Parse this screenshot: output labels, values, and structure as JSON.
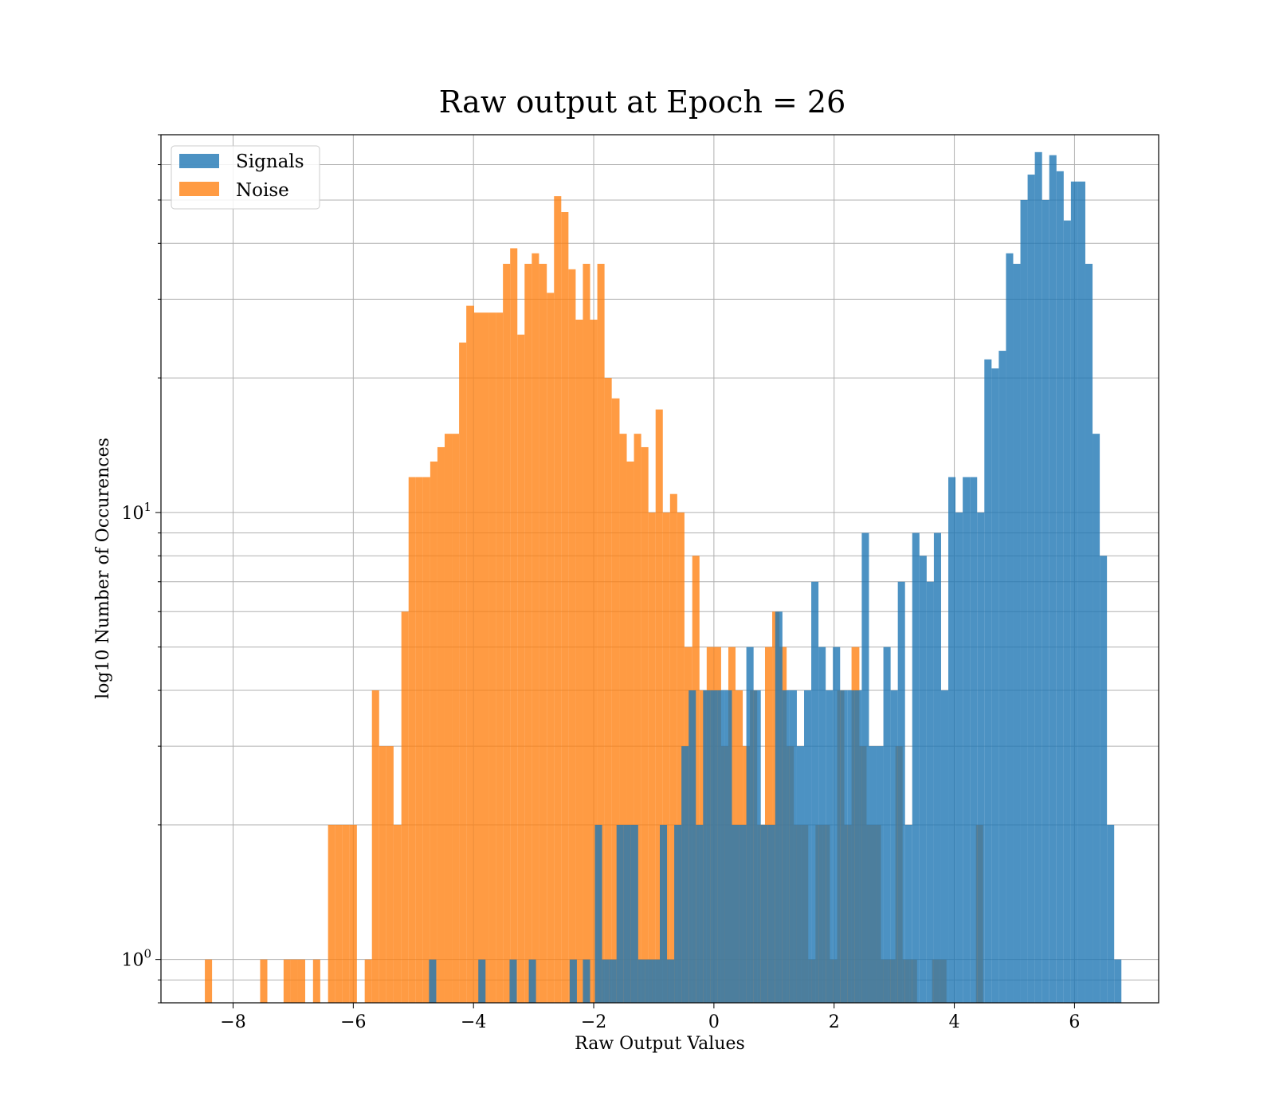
{
  "chart_data": {
    "type": "bar",
    "title": "Raw output at Epoch = 26",
    "xlabel": "Raw Output Values",
    "ylabel": "log10 Number of Occurences",
    "xlim": [
      -9.2,
      7.4
    ],
    "ylim": [
      0.8,
      70
    ],
    "yscale": "log",
    "grid": true,
    "legend_position": "top-left",
    "x_ticks": [
      {
        "value": -8,
        "label": "−8"
      },
      {
        "value": -6,
        "label": "−6"
      },
      {
        "value": -4,
        "label": "−4"
      },
      {
        "value": -2,
        "label": "−2"
      },
      {
        "value": 0,
        "label": "0"
      },
      {
        "value": 2,
        "label": "2"
      },
      {
        "value": 4,
        "label": "4"
      },
      {
        "value": 6,
        "label": "6"
      }
    ],
    "y_ticks": [
      {
        "value": 1,
        "base": "10",
        "exp": "0"
      },
      {
        "value": 10,
        "base": "10",
        "exp": "1"
      }
    ],
    "series": [
      {
        "name": "Noise",
        "color": "#ff7f0e",
        "opacity": 0.78,
        "bins": [
          [
            -8.47,
            -8.35,
            1
          ],
          [
            -7.55,
            -7.43,
            1
          ],
          [
            -7.16,
            -7.04,
            1
          ],
          [
            -7.04,
            -6.92,
            1
          ],
          [
            -6.92,
            -6.8,
            1
          ],
          [
            -6.67,
            -6.55,
            1
          ],
          [
            -6.42,
            -6.3,
            2
          ],
          [
            -6.3,
            -6.18,
            2
          ],
          [
            -6.18,
            -6.06,
            2
          ],
          [
            -6.06,
            -5.94,
            2
          ],
          [
            -5.81,
            -5.69,
            1
          ],
          [
            -5.69,
            -5.57,
            4
          ],
          [
            -5.57,
            -5.45,
            3
          ],
          [
            -5.45,
            -5.33,
            3
          ],
          [
            -5.33,
            -5.2,
            2
          ],
          [
            -5.2,
            -5.08,
            6
          ],
          [
            -5.08,
            -4.96,
            12
          ],
          [
            -4.96,
            -4.84,
            12
          ],
          [
            -4.84,
            -4.72,
            12
          ],
          [
            -4.72,
            -4.6,
            13
          ],
          [
            -4.6,
            -4.48,
            14
          ],
          [
            -4.48,
            -4.36,
            15
          ],
          [
            -4.36,
            -4.24,
            15
          ],
          [
            -4.24,
            -4.12,
            24
          ],
          [
            -4.12,
            -3.99,
            29
          ],
          [
            -3.99,
            -3.87,
            28
          ],
          [
            -3.87,
            -3.75,
            28
          ],
          [
            -3.75,
            -3.63,
            28
          ],
          [
            -3.63,
            -3.51,
            28
          ],
          [
            -3.51,
            -3.39,
            36
          ],
          [
            -3.39,
            -3.27,
            39
          ],
          [
            -3.27,
            -3.15,
            25
          ],
          [
            -3.15,
            -3.03,
            36
          ],
          [
            -3.03,
            -2.91,
            38
          ],
          [
            -2.91,
            -2.78,
            36
          ],
          [
            -2.78,
            -2.66,
            31
          ],
          [
            -2.66,
            -2.54,
            51
          ],
          [
            -2.54,
            -2.42,
            47
          ],
          [
            -2.42,
            -2.3,
            35
          ],
          [
            -2.3,
            -2.18,
            27
          ],
          [
            -2.18,
            -2.06,
            36
          ],
          [
            -2.06,
            -1.94,
            27
          ],
          [
            -1.94,
            -1.82,
            36
          ],
          [
            -1.82,
            -1.7,
            20
          ],
          [
            -1.7,
            -1.57,
            18
          ],
          [
            -1.57,
            -1.45,
            15
          ],
          [
            -1.45,
            -1.33,
            13
          ],
          [
            -1.33,
            -1.21,
            15
          ],
          [
            -1.21,
            -1.09,
            14
          ],
          [
            -1.09,
            -0.97,
            10
          ],
          [
            -0.97,
            -0.85,
            17
          ],
          [
            -0.85,
            -0.73,
            10
          ],
          [
            -0.73,
            -0.61,
            11
          ],
          [
            -0.61,
            -0.49,
            10
          ],
          [
            -0.49,
            -0.36,
            5
          ],
          [
            -0.36,
            -0.24,
            8
          ],
          [
            -0.24,
            -0.12,
            4
          ],
          [
            -0.12,
            0.0,
            5
          ],
          [
            0.0,
            0.12,
            5
          ],
          [
            0.12,
            0.24,
            3
          ],
          [
            0.24,
            0.36,
            5
          ],
          [
            0.36,
            0.48,
            4
          ],
          [
            0.48,
            0.6,
            3
          ],
          [
            0.6,
            0.72,
            4
          ],
          [
            0.72,
            0.85,
            2
          ],
          [
            0.85,
            0.97,
            5
          ],
          [
            0.97,
            1.09,
            6
          ],
          [
            1.09,
            1.21,
            5
          ],
          [
            1.21,
            1.33,
            3
          ],
          [
            1.33,
            1.45,
            2
          ],
          [
            1.45,
            1.57,
            2
          ],
          [
            1.57,
            1.69,
            1
          ],
          [
            1.69,
            1.81,
            2
          ],
          [
            1.81,
            1.93,
            2
          ],
          [
            1.93,
            2.05,
            1
          ],
          [
            2.05,
            2.17,
            4
          ],
          [
            2.17,
            2.29,
            2
          ],
          [
            2.29,
            2.42,
            5
          ],
          [
            2.42,
            2.54,
            3
          ],
          [
            2.54,
            2.66,
            2
          ],
          [
            2.66,
            2.78,
            2
          ],
          [
            2.78,
            2.9,
            1
          ],
          [
            2.9,
            3.02,
            1
          ],
          [
            3.02,
            3.14,
            3
          ],
          [
            3.14,
            3.26,
            1
          ],
          [
            3.26,
            3.38,
            1
          ],
          [
            3.63,
            3.75,
            1
          ],
          [
            3.75,
            3.87,
            1
          ],
          [
            4.36,
            4.48,
            2
          ]
        ]
      },
      {
        "name": "Signals",
        "color": "#1f77b4",
        "opacity": 0.8,
        "bins": [
          [
            -4.74,
            -4.62,
            1
          ],
          [
            -3.92,
            -3.8,
            1
          ],
          [
            -3.4,
            -3.28,
            1
          ],
          [
            -3.08,
            -2.96,
            1
          ],
          [
            -2.4,
            -2.28,
            1
          ],
          [
            -2.18,
            -2.06,
            1
          ],
          [
            -1.98,
            -1.86,
            2
          ],
          [
            -1.86,
            -1.74,
            1
          ],
          [
            -1.74,
            -1.62,
            1
          ],
          [
            -1.62,
            -1.5,
            2
          ],
          [
            -1.5,
            -1.38,
            2
          ],
          [
            -1.38,
            -1.26,
            2
          ],
          [
            -1.26,
            -1.14,
            1
          ],
          [
            -1.14,
            -1.02,
            1
          ],
          [
            -1.02,
            -0.9,
            1
          ],
          [
            -0.9,
            -0.78,
            2
          ],
          [
            -0.78,
            -0.66,
            1
          ],
          [
            -0.66,
            -0.54,
            2
          ],
          [
            -0.54,
            -0.42,
            3
          ],
          [
            -0.42,
            -0.3,
            4
          ],
          [
            -0.3,
            -0.18,
            2
          ],
          [
            -0.18,
            -0.06,
            4
          ],
          [
            -0.06,
            0.06,
            4
          ],
          [
            0.06,
            0.18,
            4
          ],
          [
            0.18,
            0.3,
            4
          ],
          [
            0.3,
            0.42,
            2
          ],
          [
            0.42,
            0.54,
            2
          ],
          [
            0.54,
            0.66,
            5
          ],
          [
            0.66,
            0.78,
            4
          ],
          [
            0.78,
            0.9,
            2
          ],
          [
            0.9,
            1.02,
            2
          ],
          [
            1.02,
            1.14,
            6
          ],
          [
            1.14,
            1.26,
            4
          ],
          [
            1.26,
            1.38,
            4
          ],
          [
            1.38,
            1.5,
            3
          ],
          [
            1.5,
            1.62,
            4
          ],
          [
            1.62,
            1.74,
            7
          ],
          [
            1.74,
            1.86,
            5
          ],
          [
            1.86,
            1.98,
            4
          ],
          [
            1.98,
            2.1,
            5
          ],
          [
            2.1,
            2.22,
            4
          ],
          [
            2.22,
            2.34,
            4
          ],
          [
            2.34,
            2.46,
            4
          ],
          [
            2.46,
            2.58,
            9
          ],
          [
            2.58,
            2.7,
            3
          ],
          [
            2.7,
            2.82,
            3
          ],
          [
            2.82,
            2.94,
            5
          ],
          [
            2.94,
            3.06,
            4
          ],
          [
            3.06,
            3.18,
            7
          ],
          [
            3.18,
            3.3,
            2
          ],
          [
            3.3,
            3.42,
            9
          ],
          [
            3.42,
            3.54,
            8
          ],
          [
            3.54,
            3.66,
            7
          ],
          [
            3.66,
            3.78,
            9
          ],
          [
            3.78,
            3.9,
            4
          ],
          [
            3.9,
            4.02,
            12
          ],
          [
            4.02,
            4.14,
            10
          ],
          [
            4.14,
            4.26,
            12
          ],
          [
            4.26,
            4.38,
            12
          ],
          [
            4.38,
            4.5,
            10
          ],
          [
            4.5,
            4.62,
            22
          ],
          [
            4.62,
            4.74,
            21
          ],
          [
            4.74,
            4.86,
            23
          ],
          [
            4.86,
            4.98,
            38
          ],
          [
            4.98,
            5.1,
            36
          ],
          [
            5.1,
            5.22,
            50
          ],
          [
            5.22,
            5.34,
            57
          ],
          [
            5.34,
            5.46,
            64
          ],
          [
            5.46,
            5.58,
            50
          ],
          [
            5.58,
            5.7,
            63
          ],
          [
            5.7,
            5.82,
            58
          ],
          [
            5.82,
            5.94,
            45
          ],
          [
            5.94,
            6.06,
            55
          ],
          [
            6.06,
            6.18,
            55
          ],
          [
            6.18,
            6.3,
            36
          ],
          [
            6.3,
            6.42,
            15
          ],
          [
            6.42,
            6.54,
            8
          ],
          [
            6.54,
            6.66,
            2
          ],
          [
            6.66,
            6.78,
            1
          ]
        ]
      }
    ]
  }
}
